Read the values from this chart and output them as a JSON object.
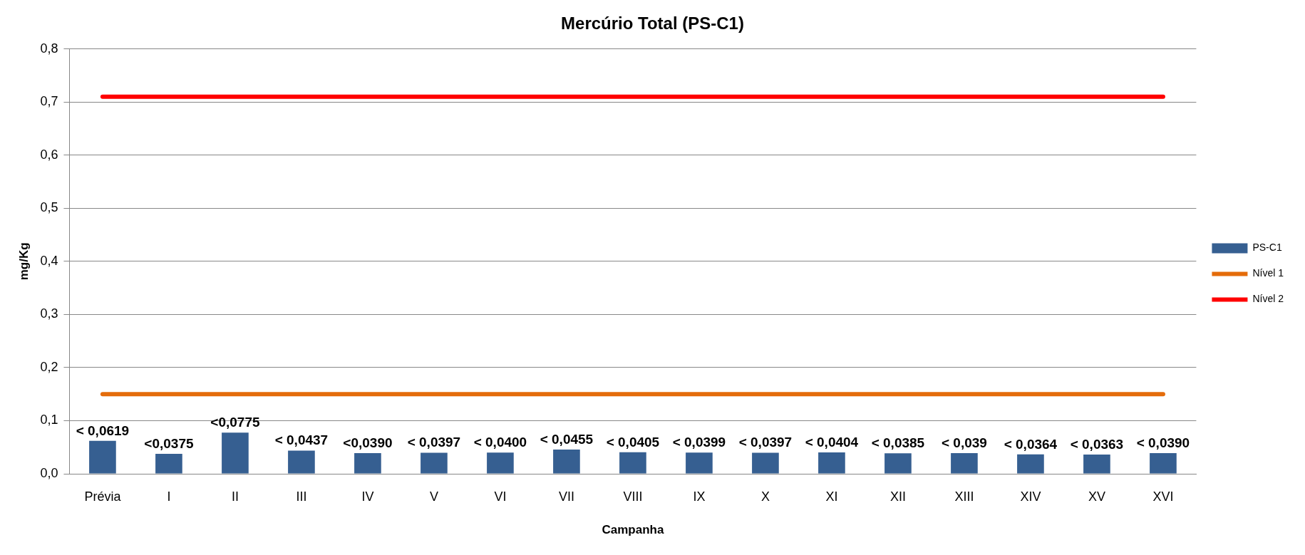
{
  "chart_data": {
    "type": "bar",
    "title": "Mercúrio Total (PS-C1)",
    "xlabel": "Campanha",
    "ylabel": "mg/Kg",
    "categories": [
      "Prévia",
      "I",
      "II",
      "III",
      "IV",
      "V",
      "VI",
      "VII",
      "VIII",
      "IX",
      "X",
      "XI",
      "XII",
      "XIII",
      "XIV",
      "XV",
      "XVI"
    ],
    "series": [
      {
        "name": "PS-C1",
        "color": "#365f91",
        "values": [
          0.0619,
          0.0375,
          0.0775,
          0.0437,
          0.039,
          0.0397,
          0.04,
          0.0455,
          0.0405,
          0.0399,
          0.0397,
          0.0404,
          0.0385,
          0.039,
          0.0364,
          0.0363,
          0.039
        ],
        "value_labels": [
          "< 0,0619",
          "<0,0375",
          "<0,0775",
          "< 0,0437",
          "<0,0390",
          "< 0,0397",
          "< 0,0400",
          "< 0,0455",
          "< 0,0405",
          "< 0,0399",
          "< 0,0397",
          "< 0,0404",
          "< 0,0385",
          "< 0,039",
          "< 0,0364",
          "< 0,0363",
          "< 0,0390"
        ]
      },
      {
        "name": "Nível 1",
        "type": "line",
        "color": "#e46c0a",
        "values": [
          0.15,
          0.15,
          0.15,
          0.15,
          0.15,
          0.15,
          0.15,
          0.15,
          0.15,
          0.15,
          0.15,
          0.15,
          0.15,
          0.15,
          0.15,
          0.15,
          0.15
        ]
      },
      {
        "name": "Nível 2",
        "type": "line",
        "color": "#ff0000",
        "values": [
          0.71,
          0.71,
          0.71,
          0.71,
          0.71,
          0.71,
          0.71,
          0.71,
          0.71,
          0.71,
          0.71,
          0.71,
          0.71,
          0.71,
          0.71,
          0.71,
          0.71
        ]
      }
    ],
    "ylim": [
      0,
      0.8
    ],
    "yticks": [
      {
        "value": 0,
        "label": "0,0"
      },
      {
        "value": 0.1,
        "label": "0,1"
      },
      {
        "value": 0.2,
        "label": "0,2"
      },
      {
        "value": 0.3,
        "label": "0,3"
      },
      {
        "value": 0.4,
        "label": "0,4"
      },
      {
        "value": 0.5,
        "label": "0,5"
      },
      {
        "value": 0.6,
        "label": "0,6"
      },
      {
        "value": 0.7,
        "label": "0,7"
      },
      {
        "value": 0.8,
        "label": "0,8"
      }
    ],
    "grid": "y",
    "legend": "right",
    "marker": "none",
    "line_style": "solid"
  }
}
